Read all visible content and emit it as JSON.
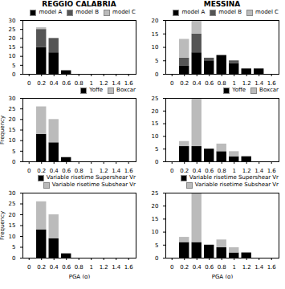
{
  "chart_data": [
    {
      "type": "bar",
      "stacked": true,
      "title": "REGGIO CALABRIA",
      "x": [
        0.0,
        0.2,
        0.4,
        0.6,
        0.8,
        1.0,
        1.2,
        1.4,
        1.6
      ],
      "xlim": [
        -0.1,
        1.72
      ],
      "xticks": [
        0,
        0.2,
        0.4,
        0.6,
        0.8,
        1,
        1.2,
        1.4,
        1.6
      ],
      "ylim": [
        0,
        30
      ],
      "yticks": [
        0,
        5,
        10,
        15,
        20,
        25,
        30
      ],
      "legend": "upper right",
      "grid": false,
      "series": [
        {
          "name": "model A",
          "color": "#000000",
          "values": [
            0,
            15,
            12,
            2,
            0,
            0,
            0,
            0,
            0
          ]
        },
        {
          "name": "model B",
          "color": "#555555",
          "values": [
            0,
            10,
            8,
            0,
            0,
            0,
            0,
            0,
            0
          ]
        },
        {
          "name": "model C",
          "color": "#bbbbbb",
          "values": [
            0,
            1,
            0,
            0,
            0,
            0,
            0,
            0,
            0
          ]
        }
      ]
    },
    {
      "type": "bar",
      "stacked": true,
      "title": "MESSINA",
      "x": [
        0.0,
        0.2,
        0.4,
        0.6,
        0.8,
        1.0,
        1.2,
        1.4,
        1.6
      ],
      "xlim": [
        -0.1,
        1.72
      ],
      "xticks": [
        0,
        0.2,
        0.4,
        0.6,
        0.8,
        1,
        1.2,
        1.4,
        1.6
      ],
      "ylim": [
        0,
        20
      ],
      "yticks": [
        0,
        5,
        10,
        15,
        20
      ],
      "legend": "upper right",
      "grid": false,
      "series": [
        {
          "name": "model A",
          "color": "#000000",
          "values": [
            0,
            3,
            8,
            5,
            7,
            4,
            2,
            2,
            0
          ]
        },
        {
          "name": "model B",
          "color": "#555555",
          "values": [
            0,
            3,
            7,
            1,
            0,
            1,
            0,
            0,
            0
          ]
        },
        {
          "name": "model C",
          "color": "#bbbbbb",
          "values": [
            0,
            7,
            5,
            0,
            0,
            0,
            0,
            0,
            0
          ]
        }
      ]
    },
    {
      "type": "bar",
      "stacked": true,
      "ylabel": "Frequency",
      "x": [
        0.0,
        0.2,
        0.4,
        0.6,
        0.8,
        1.0,
        1.2,
        1.4,
        1.6
      ],
      "xlim": [
        -0.1,
        1.72
      ],
      "xticks": [
        0,
        0.2,
        0.4,
        0.6,
        0.8,
        1,
        1.2,
        1.4,
        1.6
      ],
      "ylim": [
        0,
        30
      ],
      "yticks": [
        0,
        5,
        10,
        15,
        20,
        25,
        30
      ],
      "legend": "upper right",
      "grid": false,
      "series": [
        {
          "name": "Yoffe",
          "color": "#000000",
          "values": [
            0,
            13,
            9,
            2,
            0,
            0,
            0,
            0,
            0
          ]
        },
        {
          "name": "Boxcar",
          "color": "#bbbbbb",
          "values": [
            0,
            13,
            11,
            0,
            0,
            0,
            0,
            0,
            0
          ]
        }
      ]
    },
    {
      "type": "bar",
      "stacked": true,
      "x": [
        0.0,
        0.2,
        0.4,
        0.6,
        0.8,
        1.0,
        1.2,
        1.4,
        1.6
      ],
      "xlim": [
        -0.1,
        1.72
      ],
      "xticks": [
        0,
        0.2,
        0.4,
        0.6,
        0.8,
        1,
        1.2,
        1.4,
        1.6
      ],
      "ylim": [
        0,
        25
      ],
      "yticks": [
        0,
        5,
        10,
        15,
        20,
        25
      ],
      "legend": "upper right",
      "grid": false,
      "series": [
        {
          "name": "Yoffe",
          "color": "#000000",
          "values": [
            0,
            6,
            6,
            5,
            4,
            2,
            2,
            0,
            0
          ]
        },
        {
          "name": "Boxcar",
          "color": "#bbbbbb",
          "values": [
            0,
            2,
            19,
            0,
            3,
            2,
            0,
            0,
            0
          ]
        }
      ]
    },
    {
      "type": "bar",
      "stacked": true,
      "xlabel": "PGA (g)",
      "ylabel": "Frequency",
      "x": [
        0.0,
        0.2,
        0.4,
        0.6,
        0.8,
        1.0,
        1.2,
        1.4,
        1.6
      ],
      "xlim": [
        -0.1,
        1.72
      ],
      "xticks": [
        0,
        0.2,
        0.4,
        0.6,
        0.8,
        1,
        1.2,
        1.4,
        1.6
      ],
      "ylim": [
        0,
        30
      ],
      "yticks": [
        0,
        5,
        10,
        15,
        20,
        25,
        30
      ],
      "legend": "upper right",
      "grid": false,
      "series": [
        {
          "name": "Variable risetime Supershear Vr",
          "color": "#000000",
          "values": [
            0,
            13,
            9,
            2,
            0,
            0,
            0,
            0,
            0
          ]
        },
        {
          "name": "Variable risetime Subshear Vr",
          "color": "#bbbbbb",
          "values": [
            0,
            13,
            11,
            0,
            0,
            0,
            0,
            0,
            0
          ]
        }
      ]
    },
    {
      "type": "bar",
      "stacked": true,
      "xlabel": "PGA (g)",
      "x": [
        0.0,
        0.2,
        0.4,
        0.6,
        0.8,
        1.0,
        1.2,
        1.4,
        1.6
      ],
      "xlim": [
        -0.1,
        1.72
      ],
      "xticks": [
        0,
        0.2,
        0.4,
        0.6,
        0.8,
        1,
        1.2,
        1.4,
        1.6
      ],
      "ylim": [
        0,
        25
      ],
      "yticks": [
        0,
        5,
        10,
        15,
        20,
        25
      ],
      "legend": "upper right",
      "grid": false,
      "series": [
        {
          "name": "Variable risetime Supershear Vr",
          "color": "#000000",
          "values": [
            0,
            6,
            6,
            5,
            4,
            2,
            2,
            0,
            0
          ]
        },
        {
          "name": "Variable risetime Subshear Vr",
          "color": "#bbbbbb",
          "values": [
            0,
            2,
            19,
            0,
            3,
            2,
            0,
            0,
            0
          ]
        }
      ]
    }
  ]
}
